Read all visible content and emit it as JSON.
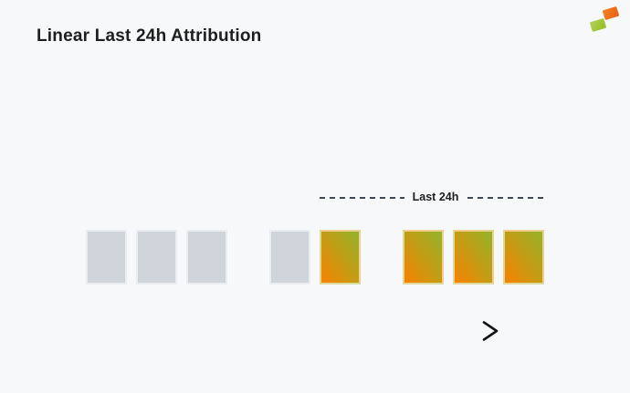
{
  "page": {
    "title": "Linear Last 24h Attribution",
    "background_color": "#f7f8f9"
  },
  "logo": {
    "name": "brand-logo",
    "orange_color": "#f17a1e",
    "green_color": "#9ac12d"
  },
  "annotation": {
    "label": "Last 24h",
    "dash_color": "#3f4855"
  },
  "timeline": {
    "groups": [
      {
        "blocks": [
          {
            "state": "past"
          },
          {
            "state": "past"
          },
          {
            "state": "past"
          }
        ]
      },
      {
        "blocks": [
          {
            "state": "past"
          },
          {
            "state": "attributed"
          }
        ]
      },
      {
        "blocks": [
          {
            "state": "attributed"
          },
          {
            "state": "attributed"
          },
          {
            "state": "attributed"
          }
        ]
      }
    ],
    "colors": {
      "past": "#d0d5dc",
      "attributed_orange": "#f68300",
      "attributed_green": "#93b42a"
    }
  },
  "arrow": {
    "direction": "right",
    "color_end": "#141414"
  }
}
